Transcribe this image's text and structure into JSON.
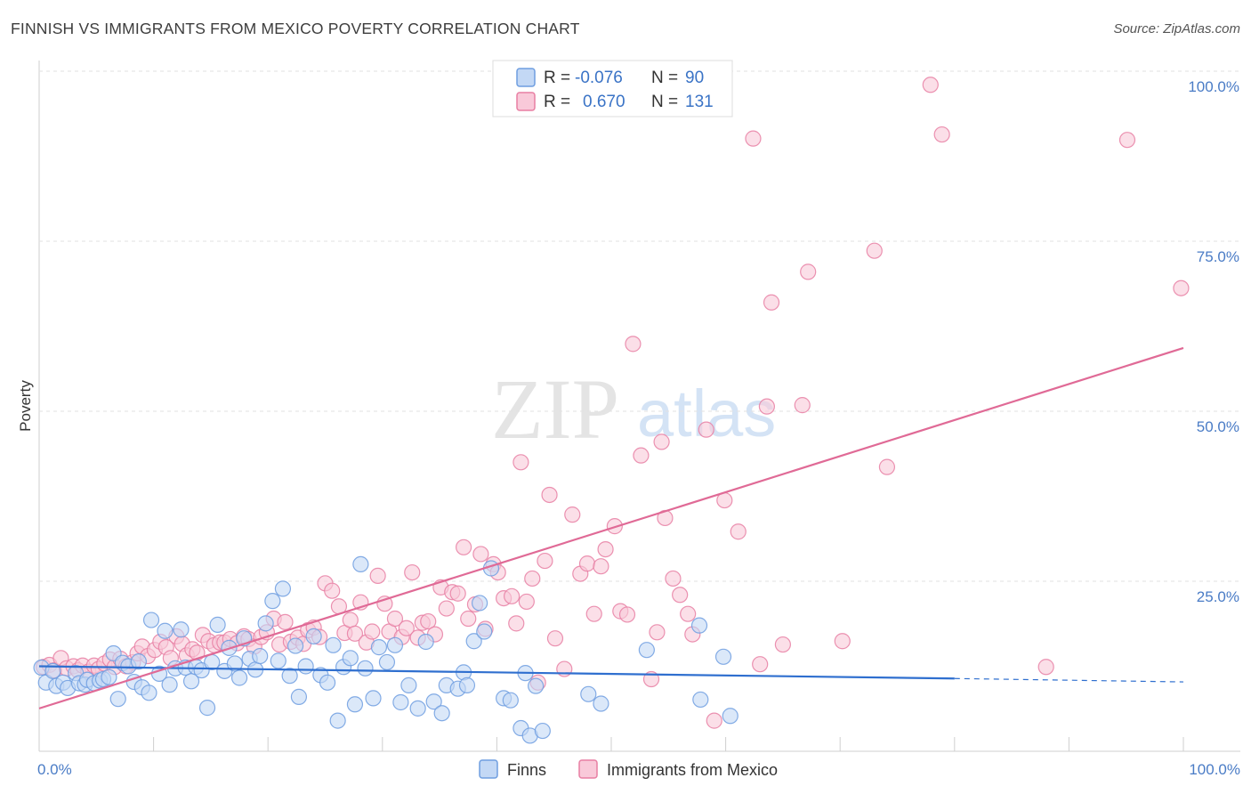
{
  "title": "FINNISH VS IMMIGRANTS FROM MEXICO POVERTY CORRELATION CHART",
  "source": "Source: ZipAtlas.com",
  "watermark": {
    "zip": "ZIP",
    "atlas": "atlas"
  },
  "legend": {
    "rows": [
      {
        "r_label": "R =",
        "r_value": "-0.076",
        "n_label": "N =",
        "n_value": "90",
        "color": "#6f9ee0",
        "fill": "#c3d8f5"
      },
      {
        "r_label": "R =",
        "r_value": "0.670",
        "n_label": "N =",
        "n_value": "131",
        "color": "#e87fa3",
        "fill": "#f9c9d9"
      }
    ]
  },
  "bottom_legend": [
    {
      "label": "Finns",
      "color": "#6f9ee0",
      "fill": "#c3d8f5"
    },
    {
      "label": "Immigrants from Mexico",
      "color": "#e87fa3",
      "fill": "#f9c9d9"
    }
  ],
  "chart_data": {
    "type": "scatter",
    "title": "FINNISH VS IMMIGRANTS FROM MEXICO POVERTY CORRELATION CHART",
    "xlabel": "",
    "ylabel": "Poverty",
    "xlim": [
      0,
      100
    ],
    "ylim": [
      0,
      100
    ],
    "x_tick_labels": [
      "0.0%",
      "100.0%"
    ],
    "y_tick_labels": [
      "25.0%",
      "50.0%",
      "75.0%",
      "100.0%"
    ],
    "y_ticks": [
      25,
      50,
      75,
      100
    ],
    "grid": true,
    "legend_position": "top-center",
    "series": [
      {
        "name": "Finns",
        "color": "#6f9ee0",
        "fill": "#c3d8f5",
        "trend": {
          "x": [
            0,
            80
          ],
          "y": [
            12.5,
            10.7
          ],
          "dashed_to": [
            100,
            10.2
          ],
          "color": "#2f6fcf"
        },
        "points": [
          [
            0.2,
            12.3
          ],
          [
            0.6,
            10.1
          ],
          [
            1.2,
            11.8
          ],
          [
            1.5,
            9.6
          ],
          [
            2.1,
            10.1
          ],
          [
            2.5,
            9.3
          ],
          [
            3.2,
            11.5
          ],
          [
            3.5,
            10.0
          ],
          [
            4.0,
            9.8
          ],
          [
            4.2,
            10.5
          ],
          [
            4.8,
            10.0
          ],
          [
            5.3,
            10.4
          ],
          [
            5.6,
            10.6
          ],
          [
            6.1,
            10.9
          ],
          [
            6.5,
            14.4
          ],
          [
            6.9,
            7.7
          ],
          [
            7.3,
            13.0
          ],
          [
            7.8,
            12.5
          ],
          [
            8.3,
            10.2
          ],
          [
            8.7,
            13.2
          ],
          [
            9.0,
            9.4
          ],
          [
            9.6,
            8.6
          ],
          [
            9.8,
            19.3
          ],
          [
            10.5,
            11.4
          ],
          [
            11.0,
            17.7
          ],
          [
            11.4,
            9.8
          ],
          [
            11.9,
            12.2
          ],
          [
            12.4,
            17.9
          ],
          [
            12.8,
            12.3
          ],
          [
            13.3,
            10.3
          ],
          [
            13.7,
            12.4
          ],
          [
            14.2,
            11.9
          ],
          [
            14.7,
            6.4
          ],
          [
            15.1,
            13.1
          ],
          [
            15.6,
            18.6
          ],
          [
            16.2,
            11.8
          ],
          [
            16.6,
            15.2
          ],
          [
            17.1,
            12.9
          ],
          [
            17.5,
            10.8
          ],
          [
            17.9,
            16.6
          ],
          [
            18.4,
            13.6
          ],
          [
            18.9,
            12.0
          ],
          [
            19.3,
            14.0
          ],
          [
            19.8,
            18.8
          ],
          [
            20.4,
            22.1
          ],
          [
            20.9,
            13.3
          ],
          [
            21.3,
            23.9
          ],
          [
            21.9,
            11.1
          ],
          [
            22.4,
            15.5
          ],
          [
            22.7,
            8.0
          ],
          [
            23.3,
            12.5
          ],
          [
            24.0,
            16.9
          ],
          [
            24.6,
            11.2
          ],
          [
            25.2,
            10.1
          ],
          [
            25.7,
            15.6
          ],
          [
            26.1,
            4.5
          ],
          [
            26.6,
            12.4
          ],
          [
            27.2,
            13.7
          ],
          [
            27.6,
            6.9
          ],
          [
            28.1,
            27.5
          ],
          [
            28.5,
            12.2
          ],
          [
            29.2,
            7.8
          ],
          [
            29.7,
            15.3
          ],
          [
            30.4,
            13.1
          ],
          [
            31.1,
            15.6
          ],
          [
            31.6,
            7.2
          ],
          [
            32.3,
            9.7
          ],
          [
            33.1,
            6.3
          ],
          [
            33.8,
            16.1
          ],
          [
            34.5,
            7.3
          ],
          [
            35.2,
            5.6
          ],
          [
            35.6,
            9.7
          ],
          [
            36.6,
            9.2
          ],
          [
            37.1,
            11.6
          ],
          [
            37.4,
            9.7
          ],
          [
            38.0,
            16.2
          ],
          [
            38.5,
            21.8
          ],
          [
            38.9,
            17.6
          ],
          [
            39.5,
            26.9
          ],
          [
            40.6,
            7.8
          ],
          [
            41.2,
            7.5
          ],
          [
            42.1,
            3.4
          ],
          [
            42.5,
            11.5
          ],
          [
            42.9,
            2.3
          ],
          [
            43.4,
            9.6
          ],
          [
            44.0,
            3.0
          ],
          [
            48.0,
            8.4
          ],
          [
            49.1,
            7.0
          ],
          [
            53.1,
            14.9
          ],
          [
            57.7,
            18.5
          ],
          [
            57.8,
            7.6
          ],
          [
            59.8,
            13.9
          ],
          [
            60.4,
            5.2
          ]
        ]
      },
      {
        "name": "Immigrants from Mexico",
        "color": "#e87fa3",
        "fill": "#f9c9d9",
        "trend": {
          "x": [
            0,
            100
          ],
          "y": [
            6.3,
            59.3
          ],
          "color": "#e06a96"
        },
        "points": [
          [
            0.4,
            12.4
          ],
          [
            0.9,
            12.7
          ],
          [
            1.3,
            11.9
          ],
          [
            1.9,
            13.7
          ],
          [
            2.4,
            12.2
          ],
          [
            3.0,
            12.5
          ],
          [
            3.4,
            11.9
          ],
          [
            3.8,
            12.6
          ],
          [
            4.3,
            11.7
          ],
          [
            4.8,
            12.6
          ],
          [
            5.2,
            12.1
          ],
          [
            5.7,
            12.9
          ],
          [
            6.2,
            13.5
          ],
          [
            6.6,
            12.4
          ],
          [
            7.1,
            13.6
          ],
          [
            7.6,
            12.5
          ],
          [
            8.2,
            13.1
          ],
          [
            8.6,
            14.4
          ],
          [
            9.0,
            15.4
          ],
          [
            9.5,
            14.0
          ],
          [
            10.1,
            14.9
          ],
          [
            10.6,
            16.1
          ],
          [
            11.1,
            15.3
          ],
          [
            11.5,
            13.7
          ],
          [
            12.0,
            16.9
          ],
          [
            12.5,
            15.8
          ],
          [
            12.9,
            14.1
          ],
          [
            13.4,
            15.0
          ],
          [
            13.8,
            14.5
          ],
          [
            14.3,
            17.1
          ],
          [
            14.8,
            16.2
          ],
          [
            15.3,
            15.6
          ],
          [
            15.8,
            16.0
          ],
          [
            16.2,
            16.0
          ],
          [
            16.7,
            16.5
          ],
          [
            17.3,
            15.9
          ],
          [
            17.9,
            16.9
          ],
          [
            18.3,
            16.5
          ],
          [
            18.8,
            15.4
          ],
          [
            19.4,
            16.8
          ],
          [
            19.9,
            17.5
          ],
          [
            20.5,
            19.5
          ],
          [
            21.0,
            15.7
          ],
          [
            21.5,
            19.0
          ],
          [
            22.0,
            16.1
          ],
          [
            22.6,
            16.7
          ],
          [
            23.1,
            15.8
          ],
          [
            23.5,
            17.8
          ],
          [
            24.0,
            18.2
          ],
          [
            24.5,
            16.8
          ],
          [
            25.0,
            24.7
          ],
          [
            25.6,
            23.6
          ],
          [
            26.2,
            21.3
          ],
          [
            26.7,
            17.4
          ],
          [
            27.2,
            19.3
          ],
          [
            27.6,
            17.3
          ],
          [
            28.1,
            21.9
          ],
          [
            28.6,
            16.0
          ],
          [
            29.1,
            17.6
          ],
          [
            29.6,
            25.8
          ],
          [
            30.2,
            21.7
          ],
          [
            30.6,
            17.6
          ],
          [
            31.1,
            19.5
          ],
          [
            31.7,
            16.8
          ],
          [
            32.1,
            18.1
          ],
          [
            32.6,
            26.3
          ],
          [
            33.1,
            16.7
          ],
          [
            33.5,
            18.9
          ],
          [
            34.0,
            19.1
          ],
          [
            34.6,
            17.2
          ],
          [
            35.1,
            24.1
          ],
          [
            35.6,
            21.0
          ],
          [
            36.1,
            23.4
          ],
          [
            36.6,
            23.2
          ],
          [
            37.1,
            30.0
          ],
          [
            37.5,
            19.5
          ],
          [
            38.1,
            21.6
          ],
          [
            38.6,
            29.0
          ],
          [
            39.0,
            18.0
          ],
          [
            39.7,
            27.5
          ],
          [
            40.1,
            26.3
          ],
          [
            40.6,
            22.5
          ],
          [
            41.3,
            22.8
          ],
          [
            41.7,
            18.8
          ],
          [
            42.1,
            42.5
          ],
          [
            42.6,
            22.0
          ],
          [
            43.1,
            25.4
          ],
          [
            43.6,
            10.1
          ],
          [
            44.2,
            28.0
          ],
          [
            44.6,
            37.7
          ],
          [
            45.1,
            16.6
          ],
          [
            45.9,
            12.1
          ],
          [
            46.6,
            34.8
          ],
          [
            47.3,
            26.1
          ],
          [
            47.9,
            27.6
          ],
          [
            48.5,
            20.2
          ],
          [
            49.1,
            27.2
          ],
          [
            49.5,
            29.7
          ],
          [
            50.3,
            33.1
          ],
          [
            50.8,
            20.6
          ],
          [
            51.4,
            20.1
          ],
          [
            51.9,
            59.9
          ],
          [
            52.6,
            43.5
          ],
          [
            53.5,
            10.6
          ],
          [
            54.0,
            17.5
          ],
          [
            54.4,
            45.5
          ],
          [
            54.7,
            34.3
          ],
          [
            55.4,
            25.4
          ],
          [
            56.0,
            23.0
          ],
          [
            56.7,
            20.2
          ],
          [
            57.1,
            17.2
          ],
          [
            58.3,
            47.3
          ],
          [
            59.0,
            4.5
          ],
          [
            59.9,
            36.9
          ],
          [
            61.1,
            32.3
          ],
          [
            62.4,
            90.1
          ],
          [
            63.0,
            12.8
          ],
          [
            63.6,
            50.7
          ],
          [
            64.0,
            66.0
          ],
          [
            65.0,
            15.7
          ],
          [
            66.7,
            50.9
          ],
          [
            67.2,
            70.5
          ],
          [
            70.2,
            16.2
          ],
          [
            73.0,
            73.6
          ],
          [
            74.1,
            41.8
          ],
          [
            77.9,
            98.0
          ],
          [
            78.9,
            90.7
          ],
          [
            88.0,
            12.4
          ],
          [
            95.1,
            89.9
          ],
          [
            99.8,
            68.1
          ]
        ]
      }
    ]
  }
}
